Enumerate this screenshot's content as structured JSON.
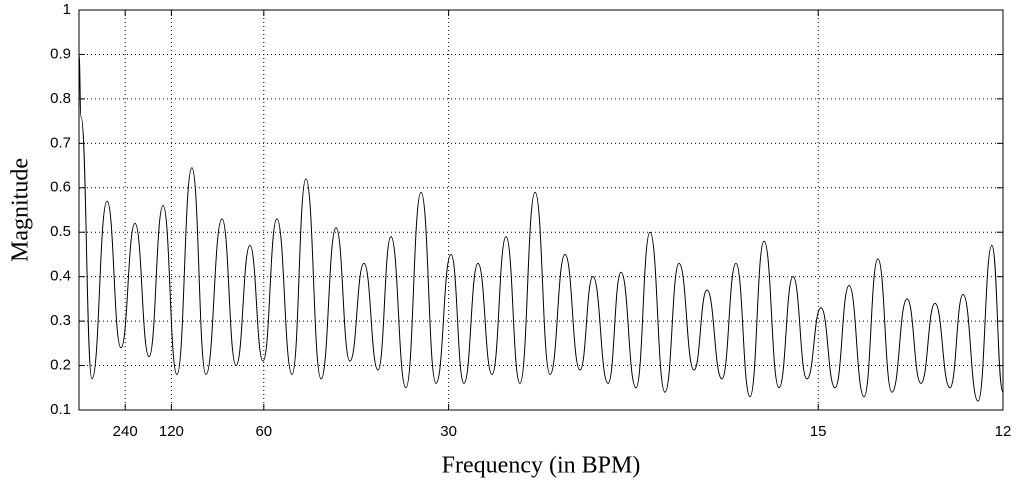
{
  "chart_data": {
    "type": "line",
    "xlabel": "Frequency (in BPM)",
    "ylabel": "Magnitude",
    "xlim": [
      0,
      5
    ],
    "ylim": [
      0.1,
      1
    ],
    "xticks": [
      {
        "value": 0.25,
        "label": "240"
      },
      {
        "value": 0.5,
        "label": "120"
      },
      {
        "value": 1,
        "label": "60"
      },
      {
        "value": 2,
        "label": "30"
      },
      {
        "value": 4,
        "label": "15"
      },
      {
        "value": 5,
        "label": "12"
      }
    ],
    "yticks": [
      0.1,
      0.2,
      0.3,
      0.4,
      0.5,
      0.6,
      0.7,
      0.8,
      0.9,
      1
    ],
    "grid": true,
    "color": "#000000",
    "x": [
      0,
      0.011,
      0.07,
      0.152,
      0.227,
      0.303,
      0.379,
      0.455,
      0.53,
      0.611,
      0.687,
      0.774,
      0.85,
      0.925,
      0.996,
      1.071,
      1.153,
      1.228,
      1.31,
      1.391,
      1.466,
      1.542,
      1.618,
      1.688,
      1.769,
      1.851,
      1.932,
      2.013,
      2.083,
      2.159,
      2.235,
      2.311,
      2.386,
      2.468,
      2.549,
      2.63,
      2.711,
      2.781,
      2.863,
      2.933,
      3.014,
      3.09,
      3.171,
      3.247,
      3.328,
      3.398,
      3.479,
      3.555,
      3.631,
      3.707,
      3.788,
      3.864,
      3.939,
      4.015,
      4.091,
      4.167,
      4.248,
      4.323,
      4.399,
      4.481,
      4.556,
      4.632,
      4.713,
      4.784,
      4.865,
      4.94,
      5.0
    ],
    "values": [
      0.9,
      0.76,
      0.17,
      0.57,
      0.24,
      0.52,
      0.22,
      0.56,
      0.18,
      0.645,
      0.18,
      0.53,
      0.2,
      0.47,
      0.21,
      0.53,
      0.18,
      0.62,
      0.17,
      0.51,
      0.21,
      0.43,
      0.19,
      0.49,
      0.15,
      0.59,
      0.16,
      0.45,
      0.16,
      0.43,
      0.18,
      0.49,
      0.16,
      0.59,
      0.18,
      0.45,
      0.19,
      0.4,
      0.16,
      0.41,
      0.15,
      0.5,
      0.14,
      0.43,
      0.19,
      0.37,
      0.17,
      0.43,
      0.13,
      0.48,
      0.15,
      0.4,
      0.17,
      0.33,
      0.15,
      0.38,
      0.13,
      0.44,
      0.14,
      0.35,
      0.16,
      0.34,
      0.15,
      0.36,
      0.12,
      0.47,
      0.14
    ]
  }
}
